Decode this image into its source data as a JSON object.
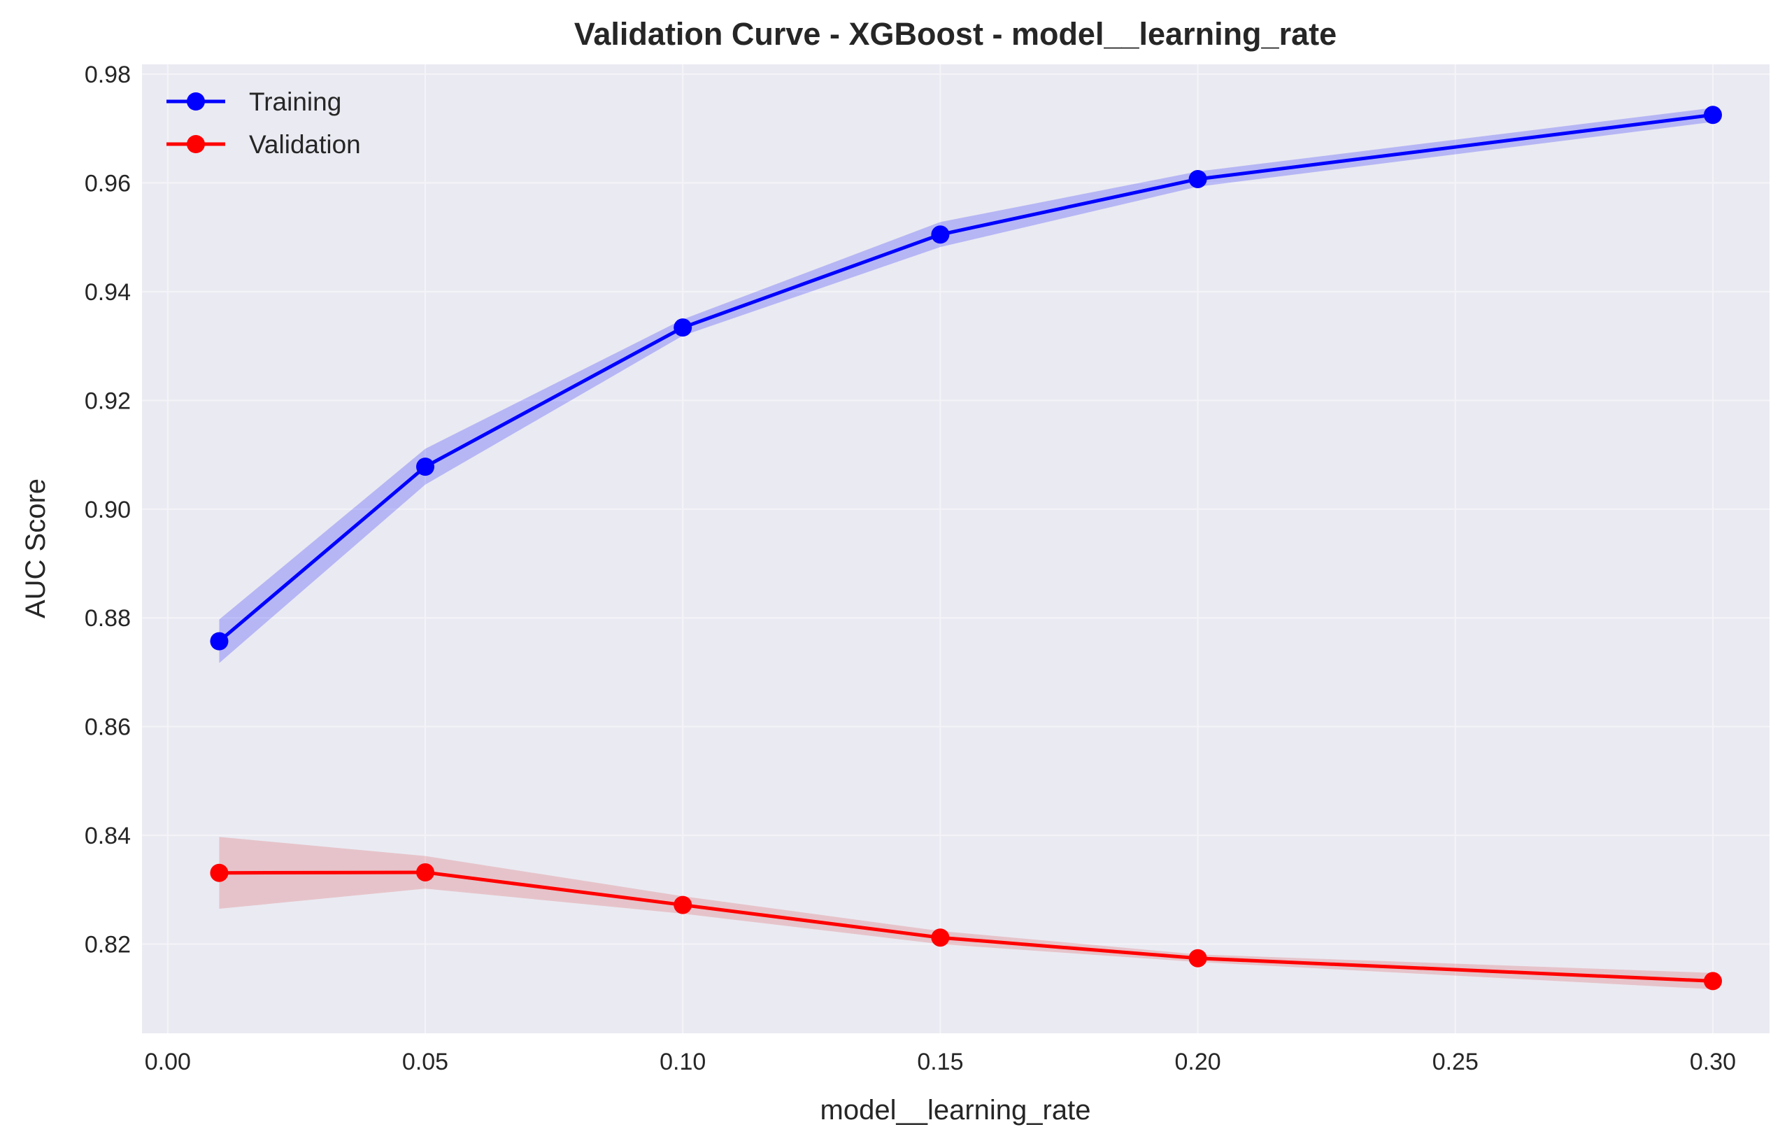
{
  "chart_data": {
    "type": "line",
    "title": "Validation Curve - XGBoost - model__learning_rate",
    "xlabel": "model__learning_rate",
    "ylabel": "AUC Score",
    "xlim": [
      -0.005,
      0.311
    ],
    "ylim": [
      0.8036,
      0.9818
    ],
    "x_ticks": [
      0.0,
      0.05,
      0.1,
      0.15,
      0.2,
      0.25,
      0.3
    ],
    "x_tick_labels": [
      "0.00",
      "0.05",
      "0.10",
      "0.15",
      "0.20",
      "0.25",
      "0.30"
    ],
    "y_ticks": [
      0.82,
      0.84,
      0.86,
      0.88,
      0.9,
      0.92,
      0.94,
      0.96,
      0.98
    ],
    "y_tick_labels": [
      "0.82",
      "0.84",
      "0.86",
      "0.88",
      "0.90",
      "0.92",
      "0.94",
      "0.96",
      "0.98"
    ],
    "grid": true,
    "legend_position": "top-left",
    "x": [
      0.01,
      0.05,
      0.1,
      0.15,
      0.2,
      0.3
    ],
    "series": [
      {
        "name": "Training",
        "color": "#0000ff",
        "band_color": "#0000ff",
        "values": [
          0.8757,
          0.9078,
          0.9334,
          0.9505,
          0.9607,
          0.9725
        ],
        "lower": [
          0.8717,
          0.9045,
          0.9319,
          0.9482,
          0.9593,
          0.9712
        ],
        "upper": [
          0.8797,
          0.9111,
          0.9349,
          0.9528,
          0.9621,
          0.9738
        ]
      },
      {
        "name": "Validation",
        "color": "#ff0000",
        "band_color": "#dc3c3c",
        "values": [
          0.8331,
          0.8332,
          0.8272,
          0.8212,
          0.8174,
          0.8132
        ],
        "lower": [
          0.8265,
          0.8302,
          0.8256,
          0.82,
          0.8167,
          0.8117
        ],
        "upper": [
          0.8397,
          0.8362,
          0.8288,
          0.8224,
          0.8181,
          0.8147
        ]
      }
    ]
  },
  "colors": {
    "plot_background": "#eaeaf2",
    "grid": "#f4f4f8",
    "text": "#262626"
  }
}
